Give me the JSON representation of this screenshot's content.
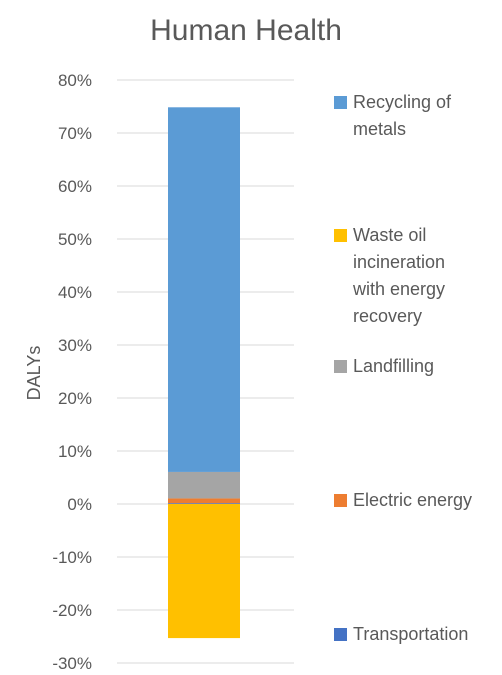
{
  "chart_data": {
    "type": "bar",
    "stacked": true,
    "title": "Human Health",
    "ylabel": "DALYs",
    "xlabel": "",
    "ylim": [
      -30,
      80
    ],
    "yticks": [
      80,
      70,
      60,
      50,
      40,
      30,
      20,
      10,
      0,
      -10,
      -20,
      -30
    ],
    "ytick_labels": [
      "80%",
      "70%",
      "60%",
      "50%",
      "40%",
      "30%",
      "20%",
      "10%",
      "0%",
      "-10%",
      "-20%",
      "-30%"
    ],
    "grid": true,
    "legend_position": "right",
    "series": [
      {
        "name": "Recycling of metals",
        "lines": [
          "Recycling of",
          "metals"
        ],
        "value": 68.8,
        "color": "#5b9bd5"
      },
      {
        "name": "Waste oil incineration with energy recovery",
        "lines": [
          "Waste oil",
          "incineration",
          "with energy",
          "recovery"
        ],
        "value": -25.3,
        "color": "#ffc000"
      },
      {
        "name": "Landfilling",
        "lines": [
          "Landfilling"
        ],
        "value": 5.0,
        "color": "#a5a5a5"
      },
      {
        "name": "Electric energy",
        "lines": [
          "Electric energy"
        ],
        "value": 0.9,
        "color": "#ed7d31"
      },
      {
        "name": "Transportation",
        "lines": [
          "Transportation"
        ],
        "value": 0.15,
        "color": "#4472c4"
      }
    ]
  }
}
